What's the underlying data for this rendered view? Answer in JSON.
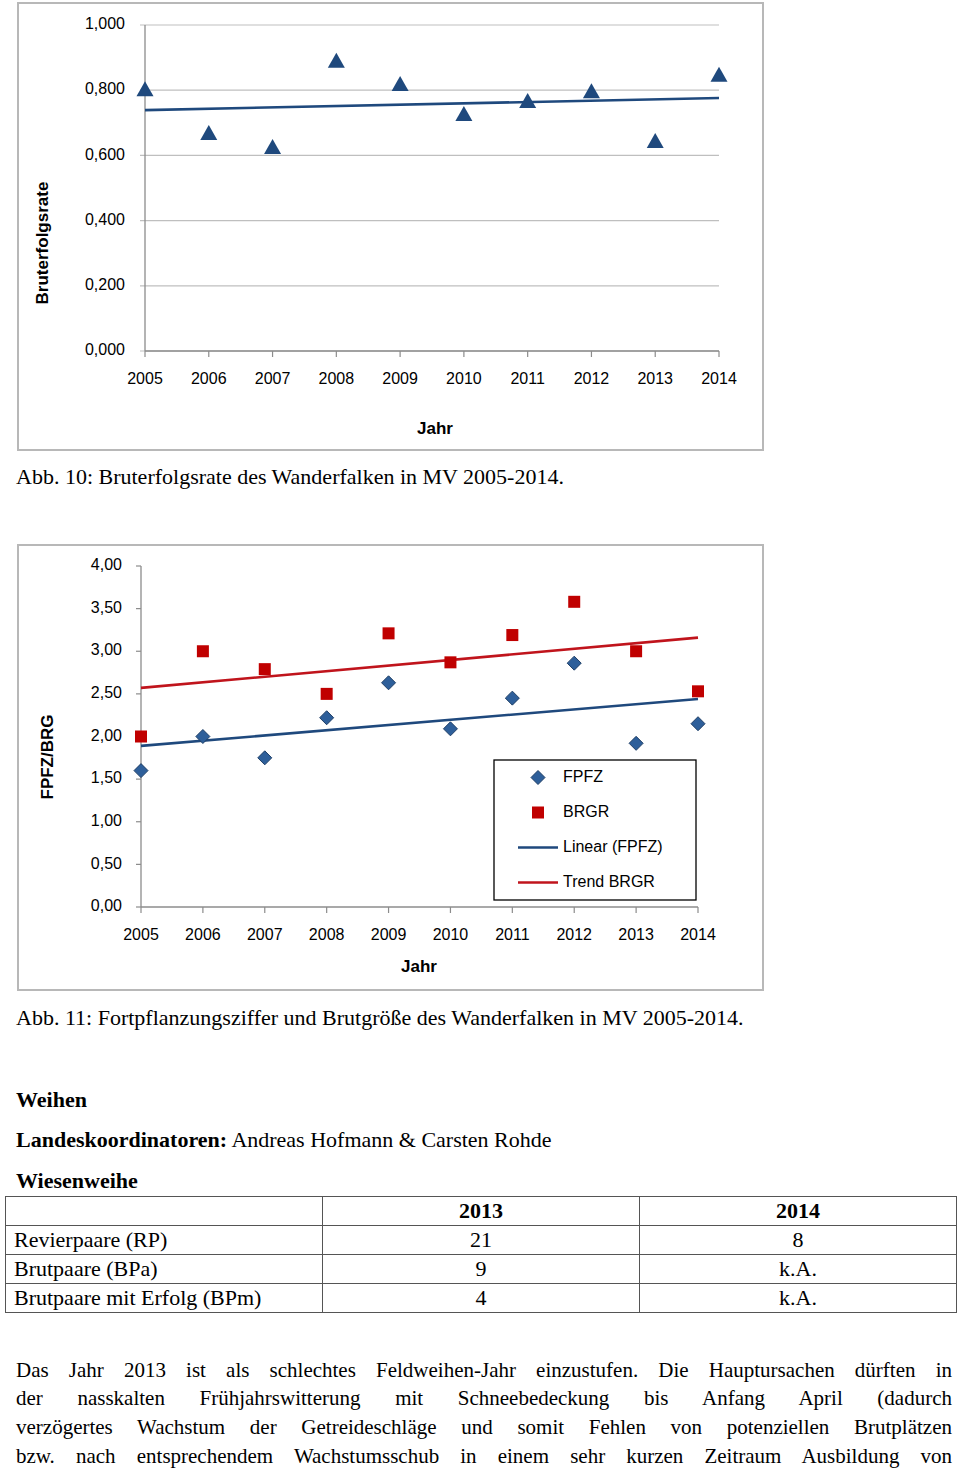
{
  "chart_data": [
    {
      "type": "scatter",
      "y_label": "Bruterfolgsrate",
      "x_label": "Jahr",
      "x": [
        2005,
        2006,
        2007,
        2008,
        2009,
        2010,
        2011,
        2012,
        2013,
        2014
      ],
      "xlim": [
        2005,
        2014
      ],
      "xticks": [
        2005,
        2006,
        2007,
        2008,
        2009,
        2010,
        2011,
        2012,
        2013,
        2014
      ],
      "ylim": [
        0,
        1
      ],
      "yticks": [
        {
          "value": 0,
          "label": "0,000"
        },
        {
          "value": 0.2,
          "label": "0,200"
        },
        {
          "value": 0.4,
          "label": "0,400"
        },
        {
          "value": 0.6,
          "label": "0,600"
        },
        {
          "value": 0.8,
          "label": "0,800"
        },
        {
          "value": 1,
          "label": "1,000"
        }
      ],
      "grid": true,
      "series": [
        {
          "type": "scatter",
          "marker": "triangle",
          "color": "#1f497d",
          "values": [
            0.8,
            0.666,
            0.623,
            0.887,
            0.816,
            0.724,
            0.764,
            0.794,
            0.641,
            0.844
          ]
        },
        {
          "type": "line",
          "line_style": "solid",
          "color": "#1f497d",
          "x": [
            2005,
            2014
          ],
          "values": [
            0.739,
            0.776
          ]
        }
      ]
    },
    {
      "type": "scatter",
      "y_label": "FPFZ/BRG",
      "x_label": "Jahr",
      "x": [
        2005,
        2006,
        2007,
        2008,
        2009,
        2010,
        2011,
        2012,
        2013,
        2014
      ],
      "xlim": [
        2005,
        2014
      ],
      "xticks": [
        2005,
        2006,
        2007,
        2008,
        2009,
        2010,
        2011,
        2012,
        2013,
        2014
      ],
      "ylim": [
        0,
        4
      ],
      "yticks": [
        {
          "value": 0,
          "label": "0,00"
        },
        {
          "value": 0.5,
          "label": "0,50"
        },
        {
          "value": 1,
          "label": "1,00"
        },
        {
          "value": 1.5,
          "label": "1,50"
        },
        {
          "value": 2,
          "label": "2,00"
        },
        {
          "value": 2.5,
          "label": "2,50"
        },
        {
          "value": 3,
          "label": "3,00"
        },
        {
          "value": 3.5,
          "label": "3,50"
        },
        {
          "value": 4,
          "label": "4,00"
        }
      ],
      "grid": false,
      "legend": "lower right",
      "series": [
        {
          "name": "FPFZ",
          "type": "scatter",
          "marker": "diamond",
          "color": "#2e5f9a",
          "values": [
            1.6,
            2.0,
            1.75,
            2.22,
            2.63,
            2.09,
            2.45,
            2.86,
            1.92,
            2.15
          ]
        },
        {
          "name": "BRGR",
          "type": "scatter",
          "marker": "square",
          "color": "#c00000",
          "values": [
            2.0,
            3.0,
            2.79,
            2.5,
            3.21,
            2.87,
            3.19,
            3.58,
            3.0,
            2.53
          ]
        },
        {
          "name": "Linear (FPFZ)",
          "type": "line",
          "line_style": "solid",
          "color": "#1f497d",
          "x": [
            2005,
            2014
          ],
          "values": [
            1.89,
            2.44
          ]
        },
        {
          "name": "Trend BRGR",
          "type": "line",
          "line_style": "solid",
          "color": "#c0141c",
          "x": [
            2005,
            2014
          ],
          "values": [
            2.57,
            3.16
          ]
        }
      ]
    }
  ],
  "document": {
    "captions": [
      "Abb. 10: Bruterfolgsrate des Wanderfalken in MV 2005-2014.",
      "Abb. 11: Fortpflanzungsziffer und Brutgröße des Wanderfalken in MV 2005-2014."
    ],
    "section": "Weihen",
    "coordinators": {
      "label": "Landeskoordinatoren:",
      "names": "Andreas Hofmann & Carsten Rohde"
    },
    "species": "Wiesenweihe",
    "table": {
      "header": [
        2013,
        2014
      ],
      "rows": [
        [
          "Revierpaare (RP)",
          21,
          8
        ],
        [
          "Brutpaare (BPa)",
          9,
          "k.A."
        ],
        [
          "Brutpaare mit Erfolg (BPm)",
          4,
          "k.A."
        ]
      ]
    },
    "paragraph": [
      "Das Jahr 2013 ist als schlechtes Feldweihen-Jahr einzustufen. Die Hauptursachen dürften in",
      "der nasskalten Frühjahrswitterung mit Schneebedeckung bis Anfang April (dadurch",
      "verzögertes Wachstum der Getreideschläge und somit Fehlen von potenziellen Brutplätzen",
      "bzw. nach entsprechendem Wachstumsschub in einem sehr kurzen Zeitraum Ausbildung von"
    ]
  }
}
